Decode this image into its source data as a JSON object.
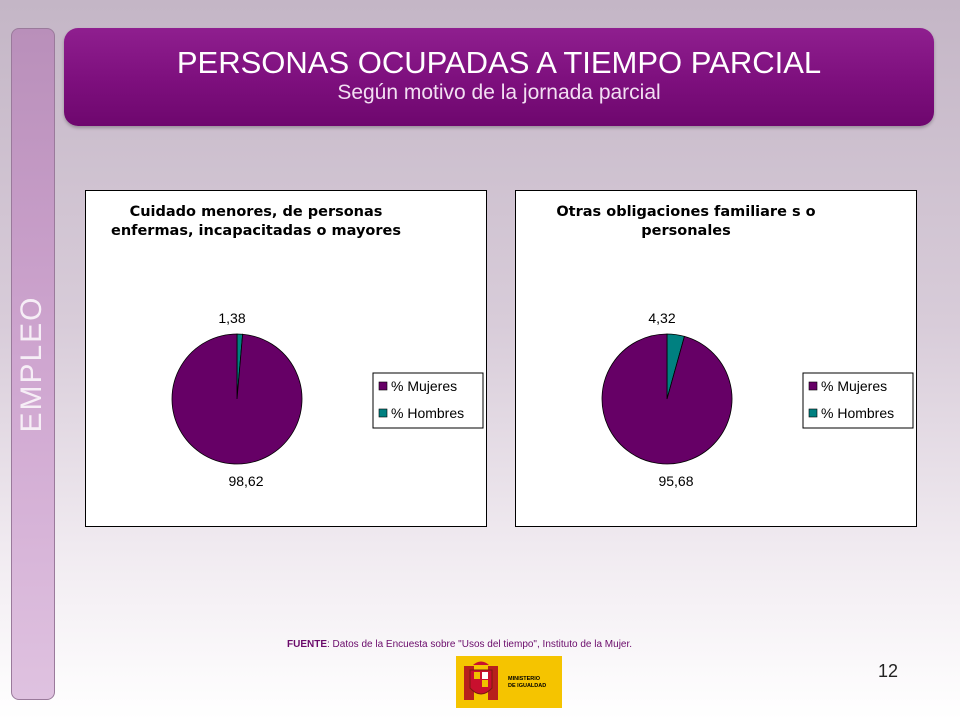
{
  "sidebar": {
    "label": "EMPLEO"
  },
  "header": {
    "title": "PERSONAS OCUPADAS A TIEMPO PARCIAL",
    "subtitle": "Según motivo de la jornada parcial"
  },
  "colors": {
    "mujeres": "#660066",
    "hombres": "#008080",
    "banner": "#7d0f7d"
  },
  "chart_data": [
    {
      "type": "pie",
      "title_lines": [
        "Cuidado menores, de personas",
        "enfermas, incapacitadas o mayores"
      ],
      "categories": [
        "% Mujeres",
        "% Hombres"
      ],
      "values": [
        98.62,
        1.38
      ],
      "value_labels": [
        "98,62",
        "1,38"
      ],
      "legend": "right"
    },
    {
      "type": "pie",
      "title_lines": [
        "Otras obligaciones familiare s o",
        "personales"
      ],
      "categories": [
        "% Mujeres",
        "% Hombres"
      ],
      "values": [
        95.68,
        4.32
      ],
      "value_labels": [
        "95,68",
        "4,32"
      ],
      "legend": "right"
    }
  ],
  "footer": {
    "source_label": "FUENTE",
    "source_text": ": Datos de la Encuesta sobre \"Usos del tiempo\", Instituto de la Mujer.",
    "logo_text": [
      "MINISTERIO",
      "DE IGUALDAD"
    ],
    "page_number": "12"
  }
}
